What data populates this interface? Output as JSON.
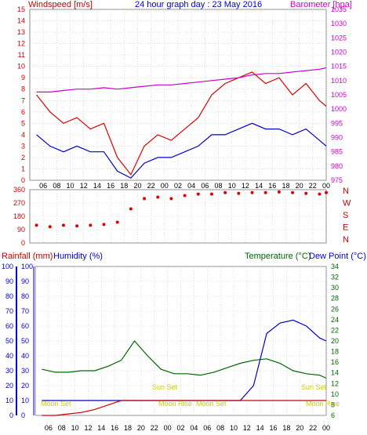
{
  "header": {
    "left_label": "Windspeed [m/s]",
    "title": "24 hour graph day : 23 May 2016",
    "right_label": "Barometer [hpa]"
  },
  "colors": {
    "wind_speed": "#e00000",
    "wind_gust_low": "#0000cc",
    "barometer": "#cc00cc",
    "wind_dir": "#e00000",
    "rainfall": "#cc0000",
    "humidity": "#0000cc",
    "temperature": "#006600",
    "dew_point": "#0000cc",
    "sun_moon": "#cccc00",
    "grid": "#c8c8c8"
  },
  "x_hours": [
    "06",
    "08",
    "10",
    "12",
    "14",
    "16",
    "18",
    "20",
    "22",
    "00",
    "02",
    "04",
    "06",
    "08",
    "10",
    "12",
    "14",
    "16",
    "18",
    "20",
    "22",
    "00"
  ],
  "wind_dir_labels": [
    "N",
    "W",
    "S",
    "E",
    "N"
  ],
  "bottom_header": {
    "rainfall_label": "Rainfall (mm)",
    "humidity_label": "Humidity (%)",
    "temperature_label": "Temperature (°C)",
    "dewpoint_label": "Dew Point (°C)"
  },
  "annotations": {
    "moon_set_1": "Moon Set",
    "sun_set_1": "Sun Set",
    "moon_rise_1": "Moon Rise",
    "moon_set_2": "Moon Set",
    "sun_set_2": "Sun Set",
    "moon_rise_2": "Moon Rise"
  },
  "chart_data": [
    {
      "type": "line",
      "title": "24 hour graph day : 23 May 2016",
      "ylabel": "Windspeed [m/s]",
      "y2label": "Barometer [hpa]",
      "ylim": [
        0,
        15
      ],
      "y2lim": [
        975,
        1035
      ],
      "x_hours": [
        5,
        7,
        9,
        11,
        13,
        15,
        17,
        19,
        21,
        23,
        25,
        27,
        29,
        31,
        33,
        35,
        37,
        39,
        41,
        43,
        45,
        47,
        48
      ],
      "series": [
        {
          "values": [
            7.5,
            6.0,
            5.0,
            5.5,
            4.5,
            5.0,
            2.0,
            0.5,
            3.0,
            4.0,
            3.5,
            4.5,
            5.5,
            7.5,
            8.5,
            9.0,
            9.5,
            8.5,
            9.0,
            7.5,
            8.5,
            7.0,
            6.5
          ]
        },
        {
          "values": [
            4.0,
            3.0,
            2.5,
            3.0,
            2.5,
            2.5,
            0.8,
            0.2,
            1.5,
            2.0,
            2.0,
            2.5,
            3.0,
            4.0,
            4.0,
            4.5,
            5.0,
            4.5,
            4.5,
            4.0,
            4.5,
            3.5,
            3.0
          ]
        },
        {
          "values": [
            1006,
            1006,
            1006.5,
            1007,
            1007,
            1007.5,
            1007,
            1007.5,
            1008,
            1008.5,
            1008.5,
            1009,
            1009.5,
            1010,
            1010.5,
            1011,
            1012,
            1012.5,
            1012.5,
            1013,
            1013.5,
            1014,
            1014.5
          ]
        }
      ]
    },
    {
      "type": "scatter",
      "ylim": [
        0,
        360
      ],
      "yticks": [
        0,
        90,
        180,
        270,
        360
      ],
      "x_hours": [
        5,
        7,
        9,
        11,
        13,
        15,
        17,
        19,
        21,
        23,
        25,
        27,
        29,
        31,
        33,
        35,
        37,
        39,
        41,
        43,
        45,
        47,
        48
      ],
      "values": [
        120,
        110,
        120,
        115,
        120,
        125,
        140,
        230,
        300,
        310,
        300,
        320,
        330,
        330,
        340,
        335,
        340,
        340,
        345,
        340,
        335,
        330,
        340
      ]
    },
    {
      "type": "line",
      "y_humidity_lim": [
        0,
        100
      ],
      "y_temp_lim": [
        6,
        34
      ],
      "x_hours": [
        5,
        7,
        9,
        11,
        13,
        15,
        17,
        19,
        21,
        23,
        25,
        27,
        29,
        31,
        33,
        35,
        37,
        39,
        41,
        43,
        45,
        47,
        48
      ],
      "series": [
        {
          "values": [
            31,
            29,
            29,
            30,
            30,
            33,
            37,
            50,
            40,
            31,
            28,
            28,
            27,
            29,
            32,
            35,
            37,
            38,
            35,
            30,
            28,
            27,
            25
          ]
        },
        {
          "values": [
            10,
            10,
            10,
            10,
            10,
            10,
            10,
            10,
            10,
            10,
            10,
            10,
            10,
            10,
            10,
            10,
            20,
            55,
            62,
            64,
            60,
            52,
            50
          ]
        },
        {
          "values": [
            0,
            0,
            1,
            2,
            4,
            7,
            10,
            10,
            10,
            10,
            10,
            10,
            10,
            10,
            10,
            10,
            10,
            10,
            10,
            10,
            10,
            10,
            10
          ]
        }
      ]
    }
  ]
}
